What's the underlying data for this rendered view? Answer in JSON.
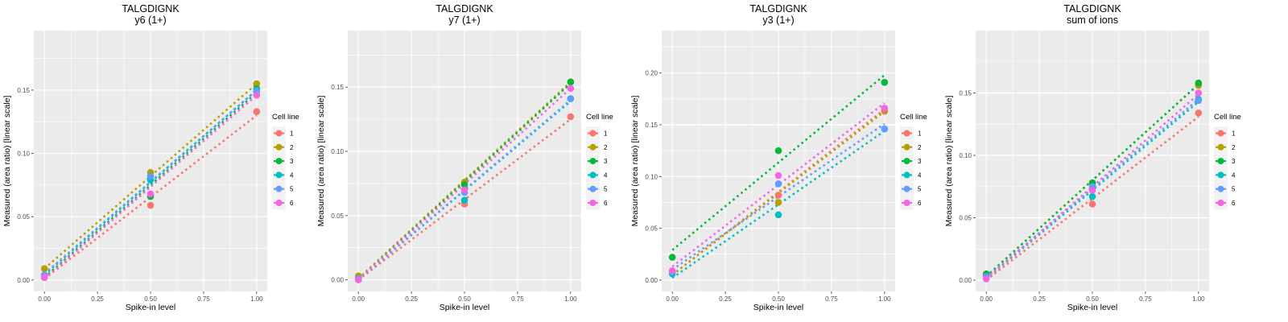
{
  "chart_data": [
    {
      "type": "scatter",
      "title": "TALGDIGNK",
      "subtitle": "y6 (1+)",
      "xlabel": "Spike-in level",
      "ylabel": "Measured (area ratio) [linear scale]",
      "xlim": [
        -0.05,
        1.05
      ],
      "ylim": [
        -0.009,
        0.197
      ],
      "xticks": [
        "0.00",
        "0.25",
        "0.50",
        "0.75",
        "1.00"
      ],
      "xtick_values": [
        0,
        0.25,
        0.5,
        0.75,
        1.0
      ],
      "yticks": [
        "0.00",
        "0.05",
        "0.10",
        "0.15"
      ],
      "ytick_values": [
        0,
        0.05,
        0.1,
        0.15
      ],
      "grid": true,
      "legend": {
        "title": "Cell line",
        "position": "right"
      },
      "x": [
        0,
        0.5,
        1.0
      ],
      "series": [
        {
          "name": "1",
          "color": "#F8766D",
          "values": [
            0.002,
            0.059,
            0.133
          ],
          "fit": [
            0.001,
            0.13
          ]
        },
        {
          "name": "2",
          "color": "#B79F00",
          "values": [
            0.009,
            0.085,
            0.155
          ],
          "fit": [
            0.009,
            0.155
          ]
        },
        {
          "name": "3",
          "color": "#00BA38",
          "values": [
            0.004,
            0.066,
            0.151
          ],
          "fit": [
            0.002,
            0.148
          ]
        },
        {
          "name": "4",
          "color": "#00BFC4",
          "values": [
            0.004,
            0.079,
            0.15
          ],
          "fit": [
            0.004,
            0.15
          ]
        },
        {
          "name": "5",
          "color": "#619CFF",
          "values": [
            0.004,
            0.082,
            0.149
          ],
          "fit": [
            0.005,
            0.15
          ]
        },
        {
          "name": "6",
          "color": "#F564E3",
          "values": [
            0.002,
            0.068,
            0.146
          ],
          "fit": [
            0.001,
            0.146
          ]
        }
      ]
    },
    {
      "type": "scatter",
      "title": "TALGDIGNK",
      "subtitle": "y7 (1+)",
      "xlabel": "Spike-in level",
      "ylabel": "Measured (area ratio) [linear scale]",
      "xlim": [
        -0.05,
        1.05
      ],
      "ylim": [
        -0.009,
        0.194
      ],
      "xticks": [
        "0.00",
        "0.25",
        "0.50",
        "0.75",
        "1.00"
      ],
      "xtick_values": [
        0,
        0.25,
        0.5,
        0.75,
        1.0
      ],
      "yticks": [
        "0.00",
        "0.05",
        "0.10",
        "0.15"
      ],
      "ytick_values": [
        0,
        0.05,
        0.1,
        0.15
      ],
      "grid": true,
      "legend": {
        "title": "Cell line",
        "position": "right"
      },
      "x": [
        0,
        0.5,
        1.0
      ],
      "series": [
        {
          "name": "1",
          "color": "#F8766D",
          "values": [
            0.001,
            0.059,
            0.127
          ],
          "fit": [
            0.0,
            0.125
          ]
        },
        {
          "name": "2",
          "color": "#B79F00",
          "values": [
            0.003,
            0.076,
            0.154
          ],
          "fit": [
            0.001,
            0.154
          ]
        },
        {
          "name": "3",
          "color": "#00BA38",
          "values": [
            0.001,
            0.074,
            0.154
          ],
          "fit": [
            0.0,
            0.153
          ]
        },
        {
          "name": "4",
          "color": "#00BFC4",
          "values": [
            0.001,
            0.062,
            0.141
          ],
          "fit": [
            0.0,
            0.139
          ]
        },
        {
          "name": "5",
          "color": "#619CFF",
          "values": [
            0.001,
            0.068,
            0.141
          ],
          "fit": [
            0.0,
            0.14
          ]
        },
        {
          "name": "6",
          "color": "#F564E3",
          "values": [
            0.0,
            0.07,
            0.149
          ],
          "fit": [
            0.0,
            0.149
          ]
        }
      ]
    },
    {
      "type": "scatter",
      "title": "TALGDIGNK",
      "subtitle": "y3 (1+)",
      "xlabel": "Spike-in level",
      "ylabel": "Measured (area ratio) [linear scale]",
      "xlim": [
        -0.05,
        1.05
      ],
      "ylim": [
        -0.011,
        0.241
      ],
      "xticks": [
        "0.00",
        "0.25",
        "0.50",
        "0.75",
        "1.00"
      ],
      "xtick_values": [
        0,
        0.25,
        0.5,
        0.75,
        1.0
      ],
      "yticks": [
        "0.00",
        "0.05",
        "0.10",
        "0.15",
        "0.20"
      ],
      "ytick_values": [
        0,
        0.05,
        0.1,
        0.15,
        0.2
      ],
      "grid": true,
      "legend": {
        "title": "Cell line",
        "position": "right"
      },
      "x": [
        0,
        0.5,
        1.0
      ],
      "series": [
        {
          "name": "1",
          "color": "#F8766D",
          "values": [
            0.008,
            0.082,
            0.163
          ],
          "fit": [
            0.005,
            0.165
          ]
        },
        {
          "name": "2",
          "color": "#B79F00",
          "values": [
            0.008,
            0.075,
            0.164
          ],
          "fit": [
            0.005,
            0.163
          ]
        },
        {
          "name": "3",
          "color": "#00BA38",
          "values": [
            0.022,
            0.125,
            0.191
          ],
          "fit": [
            0.029,
            0.198
          ]
        },
        {
          "name": "4",
          "color": "#00BFC4",
          "values": [
            0.006,
            0.063,
            0.146
          ],
          "fit": [
            0.002,
            0.144
          ]
        },
        {
          "name": "5",
          "color": "#619CFF",
          "values": [
            0.008,
            0.093,
            0.146
          ],
          "fit": [
            0.01,
            0.151
          ]
        },
        {
          "name": "6",
          "color": "#F564E3",
          "values": [
            0.009,
            0.101,
            0.166
          ],
          "fit": [
            0.013,
            0.171
          ]
        }
      ]
    },
    {
      "type": "scatter",
      "title": "TALGDIGNK",
      "subtitle": "sum of ions",
      "xlabel": "Spike-in level",
      "ylabel": "Measured (area ratio) [linear scale]",
      "xlim": [
        -0.05,
        1.05
      ],
      "ylim": [
        -0.009,
        0.2
      ],
      "xticks": [
        "0.00",
        "0.25",
        "0.50",
        "0.75",
        "1.00"
      ],
      "xtick_values": [
        0,
        0.25,
        0.5,
        0.75,
        1.0
      ],
      "yticks": [
        "0.00",
        "0.05",
        "0.10",
        "0.15"
      ],
      "ytick_values": [
        0,
        0.05,
        0.1,
        0.15
      ],
      "grid": true,
      "legend": {
        "title": "Cell line",
        "position": "right"
      },
      "x": [
        0,
        0.5,
        1.0
      ],
      "series": [
        {
          "name": "1",
          "color": "#F8766D",
          "values": [
            0.002,
            0.061,
            0.134
          ],
          "fit": [
            0.0,
            0.131
          ]
        },
        {
          "name": "2",
          "color": "#B79F00",
          "values": [
            0.005,
            0.078,
            0.156
          ],
          "fit": [
            0.003,
            0.157
          ]
        },
        {
          "name": "3",
          "color": "#00BA38",
          "values": [
            0.005,
            0.078,
            0.158
          ],
          "fit": [
            0.003,
            0.157
          ]
        },
        {
          "name": "4",
          "color": "#00BFC4",
          "values": [
            0.003,
            0.067,
            0.145
          ],
          "fit": [
            0.001,
            0.143
          ]
        },
        {
          "name": "5",
          "color": "#619CFF",
          "values": [
            0.003,
            0.075,
            0.144
          ],
          "fit": [
            0.002,
            0.145
          ]
        },
        {
          "name": "6",
          "color": "#F564E3",
          "values": [
            0.001,
            0.072,
            0.15
          ],
          "fit": [
            0.001,
            0.149
          ]
        }
      ]
    }
  ]
}
